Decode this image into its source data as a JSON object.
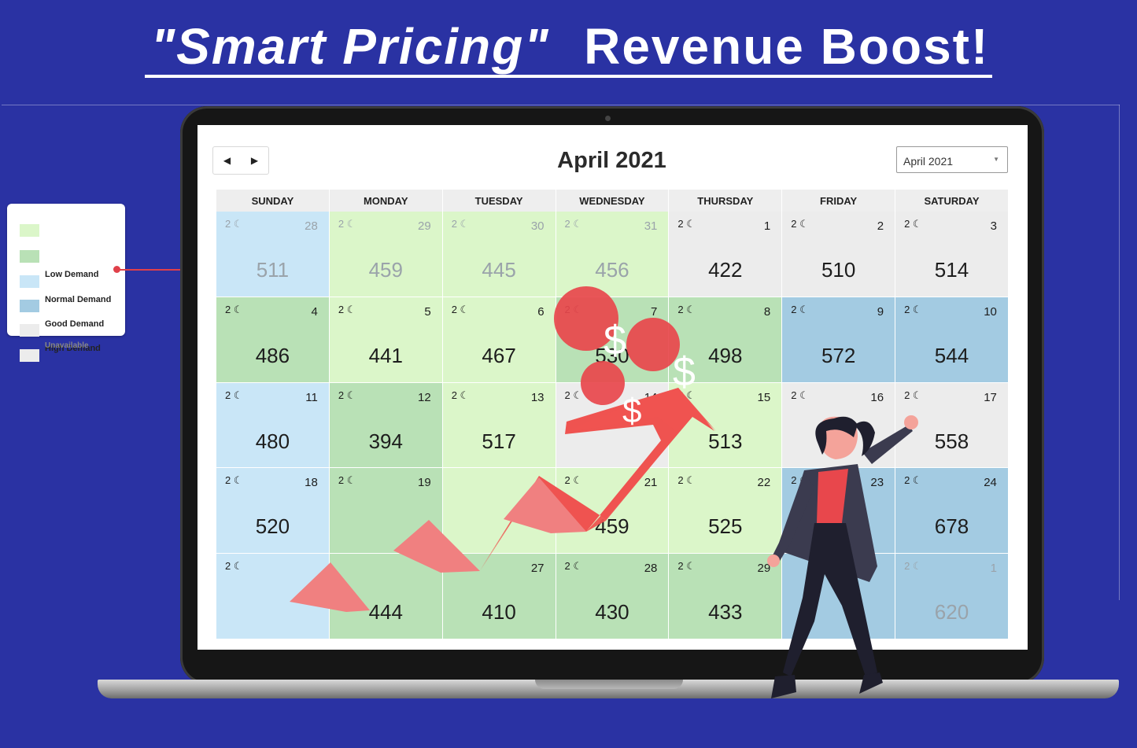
{
  "headline": {
    "italic": "\"Smart Pricing\"",
    "rest": "Revenue Boost!"
  },
  "calendar": {
    "title": "April 2021",
    "selected_month": "April 2021",
    "prev_icon": "caret-left-icon",
    "next_icon": "caret-right-icon",
    "weekdays": [
      "SUNDAY",
      "MONDAY",
      "TUESDAY",
      "WEDNESDAY",
      "THURSDAY",
      "FRIDAY",
      "SATURDAY"
    ],
    "night_icon": "moon-icon",
    "weeks": [
      [
        {
          "day": "28",
          "nights": "2",
          "price": "511",
          "level": "good",
          "faded": true
        },
        {
          "day": "29",
          "nights": "2",
          "price": "459",
          "level": "low",
          "faded": true
        },
        {
          "day": "30",
          "nights": "2",
          "price": "445",
          "level": "low",
          "faded": true
        },
        {
          "day": "31",
          "nights": "2",
          "price": "456",
          "level": "low",
          "faded": true
        },
        {
          "day": "1",
          "nights": "2",
          "price": "422",
          "level": "unavailable",
          "faded": false
        },
        {
          "day": "2",
          "nights": "2",
          "price": "510",
          "level": "unavailable",
          "faded": false
        },
        {
          "day": "3",
          "nights": "2",
          "price": "514",
          "level": "unavailable",
          "faded": false
        }
      ],
      [
        {
          "day": "4",
          "nights": "2",
          "price": "486",
          "level": "normal",
          "faded": false
        },
        {
          "day": "5",
          "nights": "2",
          "price": "441",
          "level": "low",
          "faded": false
        },
        {
          "day": "6",
          "nights": "2",
          "price": "467",
          "level": "low",
          "faded": false
        },
        {
          "day": "7",
          "nights": "2",
          "price": "530",
          "level": "normal",
          "faded": false
        },
        {
          "day": "8",
          "nights": "2",
          "price": "498",
          "level": "normal",
          "faded": false
        },
        {
          "day": "9",
          "nights": "2",
          "price": "572",
          "level": "high",
          "faded": false
        },
        {
          "day": "10",
          "nights": "2",
          "price": "544",
          "level": "high",
          "faded": false
        }
      ],
      [
        {
          "day": "11",
          "nights": "2",
          "price": "480",
          "level": "good",
          "faded": false
        },
        {
          "day": "12",
          "nights": "2",
          "price": "394",
          "level": "normal",
          "faded": false
        },
        {
          "day": "13",
          "nights": "2",
          "price": "517",
          "level": "low",
          "faded": false
        },
        {
          "day": "14",
          "nights": "2",
          "price": "",
          "level": "unavailable",
          "faded": false
        },
        {
          "day": "15",
          "nights": "2",
          "price": "513",
          "level": "low",
          "faded": false
        },
        {
          "day": "16",
          "nights": "2",
          "price": "",
          "level": "unavailable",
          "faded": false
        },
        {
          "day": "17",
          "nights": "2",
          "price": "558",
          "level": "unavailable",
          "faded": false
        }
      ],
      [
        {
          "day": "18",
          "nights": "2",
          "price": "520",
          "level": "good",
          "faded": false
        },
        {
          "day": "19",
          "nights": "2",
          "price": "",
          "level": "normal",
          "faded": false
        },
        {
          "day": "",
          "nights": "",
          "price": "",
          "level": "low",
          "faded": false
        },
        {
          "day": "21",
          "nights": "2",
          "price": "459",
          "level": "low",
          "faded": false
        },
        {
          "day": "22",
          "nights": "2",
          "price": "525",
          "level": "low",
          "faded": false
        },
        {
          "day": "23",
          "nights": "2",
          "price": "",
          "level": "high",
          "faded": false
        },
        {
          "day": "24",
          "nights": "2",
          "price": "678",
          "level": "high",
          "faded": false
        }
      ],
      [
        {
          "day": "",
          "nights": "2",
          "price": "",
          "level": "good",
          "faded": false
        },
        {
          "day": "",
          "nights": "",
          "price": "444",
          "level": "normal",
          "faded": false
        },
        {
          "day": "27",
          "nights": "",
          "price": "410",
          "level": "normal",
          "faded": false
        },
        {
          "day": "28",
          "nights": "2",
          "price": "430",
          "level": "normal",
          "faded": false
        },
        {
          "day": "29",
          "nights": "2",
          "price": "433",
          "level": "normal",
          "faded": false
        },
        {
          "day": "",
          "nights": "",
          "price": "",
          "level": "high",
          "faded": false
        },
        {
          "day": "1",
          "nights": "2",
          "price": "620",
          "level": "high",
          "faded": true
        }
      ]
    ]
  },
  "legend": {
    "items": [
      {
        "label": "",
        "color": "#dbf6c9"
      },
      {
        "label": "Low Demand",
        "color": "#b9e1b6"
      },
      {
        "label": "Normal Demand",
        "color": "#c9e6f7"
      },
      {
        "label": "Good Demand",
        "color": "#a3cbe2"
      },
      {
        "label": "High Demand",
        "color": "#ececec"
      },
      {
        "label": "Unavailable",
        "color": "#ececec"
      }
    ]
  },
  "decor": {
    "dollar_sign": "$"
  },
  "colors": {
    "background": "#2a32a3",
    "arrow": "#ef5350",
    "arrow_light": "#f08080",
    "bubble": "#e8474c"
  }
}
